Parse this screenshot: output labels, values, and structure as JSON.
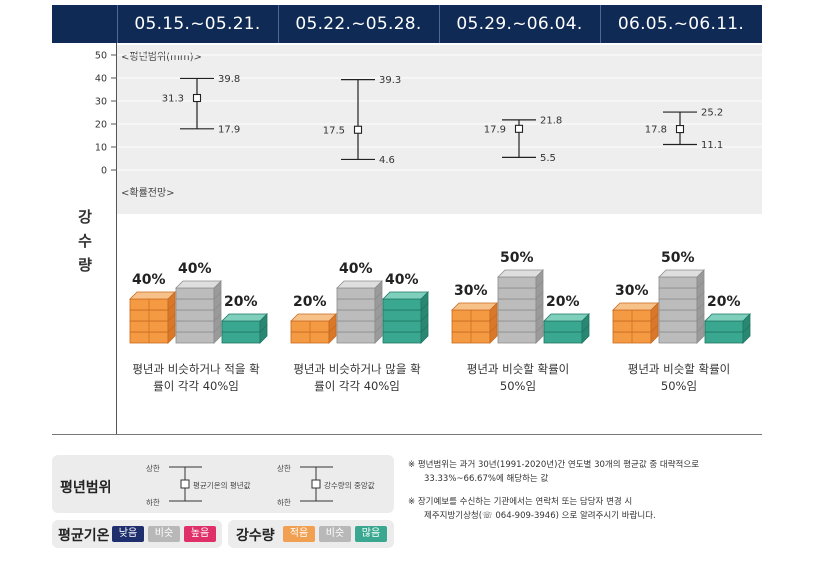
{
  "periods": [
    "05.15.~05.21.",
    "05.22.~05.28.",
    "05.29.~06.04.",
    "06.05.~06.11."
  ],
  "vertical_label": [
    "강",
    "수",
    "량"
  ],
  "range_label": "<평년범위(mm)>",
  "prob_label": "<확률전망>",
  "chart_data": {
    "type": "errorbar",
    "title": "",
    "ylim": [
      0,
      50
    ],
    "yticks": [
      0,
      10,
      20,
      30,
      40,
      50
    ],
    "categories": [
      "05.15.~05.21.",
      "05.22.~05.28.",
      "05.29.~06.04.",
      "06.05.~06.11."
    ],
    "upper": [
      39.8,
      39.3,
      21.8,
      25.2
    ],
    "center": [
      31.3,
      17.5,
      17.9,
      17.8
    ],
    "lower": [
      17.9,
      4.6,
      5.5,
      11.1
    ]
  },
  "probabilities": [
    {
      "low": "40%",
      "normal": "40%",
      "high": "20%",
      "low_v": 40,
      "normal_v": 40,
      "high_v": 20,
      "desc1": "평년과 비슷하거나 적을 확",
      "desc2": "률이 각각 40%임"
    },
    {
      "low": "20%",
      "normal": "40%",
      "high": "40%",
      "low_v": 20,
      "normal_v": 40,
      "high_v": 40,
      "desc1": "평년과 비슷하거나 많을 확",
      "desc2": "률이 각각 40%임"
    },
    {
      "low": "30%",
      "normal": "50%",
      "high": "20%",
      "low_v": 30,
      "normal_v": 50,
      "high_v": 20,
      "desc1": "평년과 비슷할 확률이",
      "desc2": "50%임"
    },
    {
      "low": "30%",
      "normal": "50%",
      "high": "20%",
      "low_v": 30,
      "normal_v": 50,
      "high_v": 20,
      "desc1": "평년과 비슷할 확률이",
      "desc2": "50%임"
    }
  ],
  "legend": {
    "range_title": "평년범위",
    "upper": "상한",
    "lower": "하한",
    "avg_label": "평균기온의 평년값",
    "median_label": "강수량의 중앙값",
    "temp_title": "평균기온",
    "temp_items": [
      "낮음",
      "비슷",
      "높음"
    ],
    "precip_title": "강수량",
    "precip_items": [
      "적음",
      "비슷",
      "많음"
    ]
  },
  "notes": {
    "n1_a": "※  평년범위는 과거 30년(1991-2020년)간 연도별 30개의 평균값 중 대략적으로",
    "n1_b": "33.33%~66.67%에 해당하는 값",
    "n2_a": "※  장기예보를 수신하는 기관에서는 연락처 또는 담당자 변경 시",
    "n2_b": "제주지방기상청(☏ 064-909-3946) 으로 알려주시기 바랍니다."
  },
  "colors": {
    "header": "#0f2a55",
    "low": "#f0a050",
    "normal": "#b8b8b8",
    "high": "#3aa890",
    "temp_low": "#1f2f6e",
    "temp_high": "#e0306a"
  }
}
